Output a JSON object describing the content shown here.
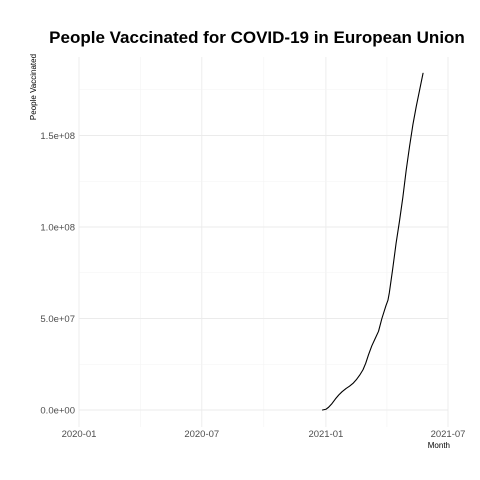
{
  "chart_data": {
    "type": "line",
    "title": "People Vaccinated for COVID-19 in European Union",
    "xlabel": "Month",
    "ylabel": "People Vaccinated",
    "x_ticks": [
      "2020-01",
      "2020-07",
      "2021-01",
      "2021-07"
    ],
    "y_ticks": [
      "0.0e+00",
      "5.0e+07",
      "1.0e+08",
      "1.5e+08"
    ],
    "xlim": [
      "2020-01-01",
      "2021-07-01"
    ],
    "ylim": [
      0,
      185000000
    ],
    "grid": true,
    "series": [
      {
        "values": [
          {
            "x": "2020-12-27",
            "y": 0
          },
          {
            "x": "2021-01-01",
            "y": 400000
          },
          {
            "x": "2021-01-05",
            "y": 1500000
          },
          {
            "x": "2021-01-10",
            "y": 3500000
          },
          {
            "x": "2021-01-15",
            "y": 6000000
          },
          {
            "x": "2021-01-20",
            "y": 8200000
          },
          {
            "x": "2021-01-25",
            "y": 10000000
          },
          {
            "x": "2021-01-31",
            "y": 11800000
          },
          {
            "x": "2021-02-05",
            "y": 13000000
          },
          {
            "x": "2021-02-10",
            "y": 14500000
          },
          {
            "x": "2021-02-15",
            "y": 16500000
          },
          {
            "x": "2021-02-20",
            "y": 19000000
          },
          {
            "x": "2021-02-25",
            "y": 22000000
          },
          {
            "x": "2021-03-01",
            "y": 25500000
          },
          {
            "x": "2021-03-05",
            "y": 30000000
          },
          {
            "x": "2021-03-10",
            "y": 35000000
          },
          {
            "x": "2021-03-15",
            "y": 39000000
          },
          {
            "x": "2021-03-20",
            "y": 43000000
          },
          {
            "x": "2021-03-25",
            "y": 50000000
          },
          {
            "x": "2021-03-31",
            "y": 57000000
          },
          {
            "x": "2021-04-03",
            "y": 60000000
          },
          {
            "x": "2021-04-05",
            "y": 64000000
          },
          {
            "x": "2021-04-10",
            "y": 77000000
          },
          {
            "x": "2021-04-15",
            "y": 91000000
          },
          {
            "x": "2021-04-20",
            "y": 103000000
          },
          {
            "x": "2021-04-25",
            "y": 116000000
          },
          {
            "x": "2021-04-30",
            "y": 131000000
          },
          {
            "x": "2021-05-05",
            "y": 144000000
          },
          {
            "x": "2021-05-10",
            "y": 156000000
          },
          {
            "x": "2021-05-15",
            "y": 166000000
          },
          {
            "x": "2021-05-20",
            "y": 175000000
          },
          {
            "x": "2021-05-25",
            "y": 184000000
          }
        ]
      }
    ]
  }
}
